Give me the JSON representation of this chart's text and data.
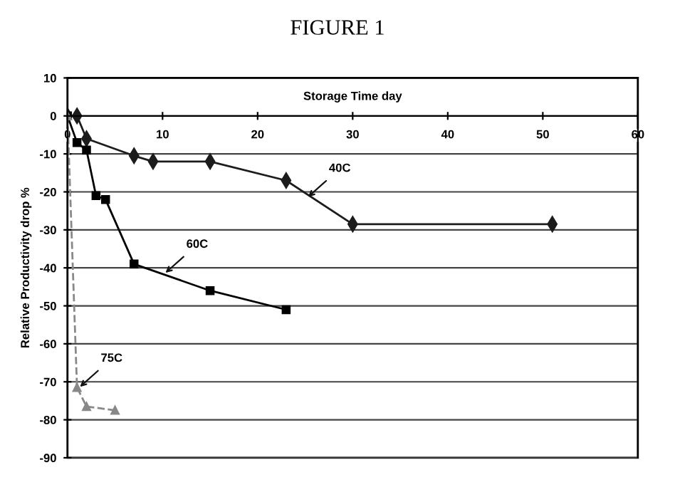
{
  "chart_data": {
    "type": "line",
    "title": "FIGURE 1",
    "xlabel": "Storage Time day",
    "ylabel": "Relative Productivity drop %",
    "xlim": [
      0,
      60
    ],
    "xticks": [
      0,
      10,
      20,
      30,
      40,
      50,
      60
    ],
    "ylim": [
      -90,
      10
    ],
    "yticks": [
      10,
      0,
      -10,
      -20,
      -30,
      -40,
      -50,
      -60,
      -70,
      -80,
      -90
    ],
    "grid": "y",
    "series": [
      {
        "color": "#1c1c1c",
        "marker": "diamond",
        "line_style": "solid",
        "x": [
          0,
          1,
          2,
          7,
          9,
          15,
          23,
          30,
          51
        ],
        "values": [
          0,
          0,
          -6,
          -10.5,
          -12,
          -12,
          -17,
          -28.5,
          -28.5
        ]
      },
      {
        "color": "#000000",
        "marker": "square",
        "line_style": "solid",
        "x": [
          0,
          1,
          2,
          3,
          4,
          7,
          15,
          23
        ],
        "values": [
          0,
          -7,
          -9,
          -21,
          -22,
          -39,
          -46,
          -51
        ]
      },
      {
        "color": "#888888",
        "marker": "triangle",
        "line_style": "dashed",
        "x": [
          0,
          1,
          2,
          5
        ],
        "values": [
          0,
          -71.5,
          -76.5,
          -77.5
        ]
      }
    ],
    "annotations": [
      {
        "text": "40C",
        "x": 25,
        "y": -22
      },
      {
        "text": "60C",
        "x": 10,
        "y": -42
      },
      {
        "text": "75C",
        "x": 1,
        "y": -72
      }
    ]
  }
}
